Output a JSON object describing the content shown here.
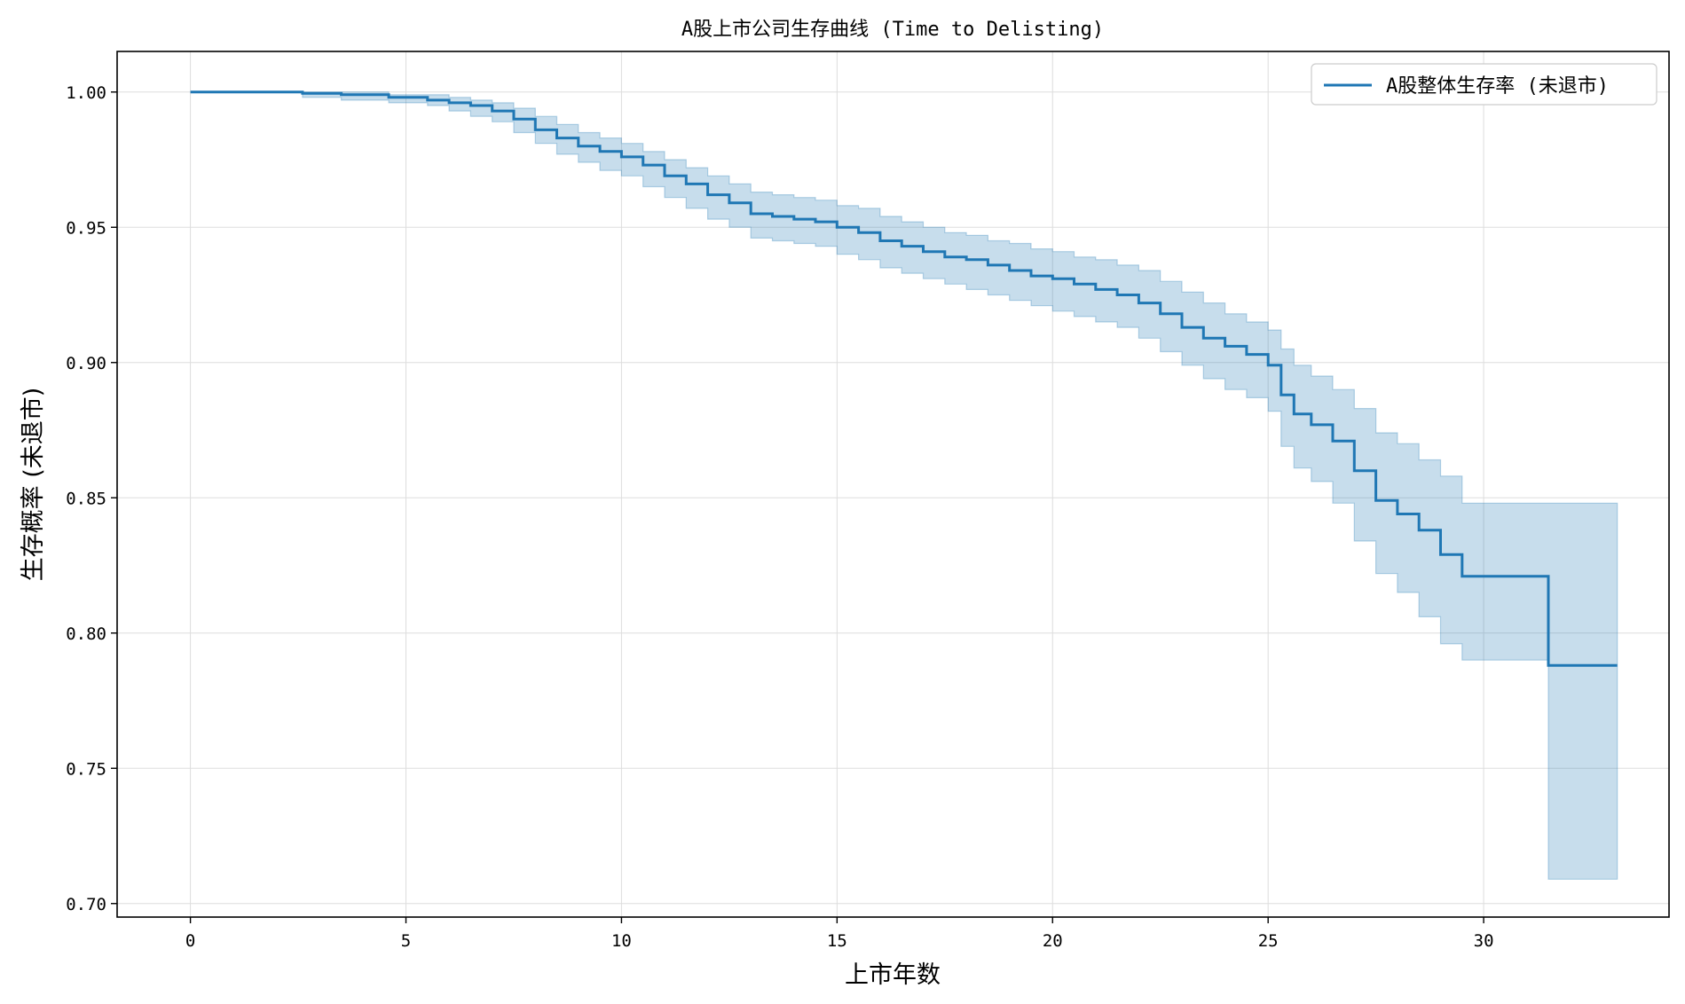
{
  "chart_data": {
    "type": "line",
    "title": "A股上市公司生存曲线 (Time to Delisting)",
    "xlabel": "上市年数",
    "ylabel": "生存概率 (未退市)",
    "xlim": [
      -1.7,
      34.3
    ],
    "ylim": [
      0.695,
      1.015
    ],
    "xticks": [
      0,
      5,
      10,
      15,
      20,
      25,
      30
    ],
    "yticks": [
      0.7,
      0.75,
      0.8,
      0.85,
      0.9,
      0.95,
      1.0
    ],
    "ytick_labels": [
      "0.70",
      "0.75",
      "0.80",
      "0.85",
      "0.90",
      "0.95",
      "1.00"
    ],
    "grid": true,
    "legend_position": "top-right",
    "colors": {
      "line": "#1f77b4",
      "band": "#1f77b4",
      "grid": "#dddddd"
    },
    "series": [
      {
        "name": "A股整体生存率 (未退市)",
        "step": true,
        "x": [
          0,
          2.6,
          3.5,
          4.6,
          5.5,
          6.0,
          6.5,
          7.0,
          7.5,
          8.0,
          8.5,
          9.0,
          9.5,
          10.0,
          10.5,
          11.0,
          11.5,
          12.0,
          12.5,
          13.0,
          13.5,
          14.0,
          14.5,
          15.0,
          15.5,
          16.0,
          16.5,
          17.0,
          17.5,
          18.0,
          18.5,
          19.0,
          19.5,
          20.0,
          20.5,
          21.0,
          21.5,
          22.0,
          22.5,
          23.0,
          23.5,
          24.0,
          24.5,
          25.0,
          25.3,
          25.6,
          26.0,
          26.5,
          27.0,
          27.5,
          28.0,
          28.5,
          29.0,
          29.5,
          31.5,
          33.1
        ],
        "y": [
          1.0,
          0.9995,
          0.999,
          0.998,
          0.997,
          0.996,
          0.995,
          0.993,
          0.99,
          0.986,
          0.983,
          0.98,
          0.978,
          0.976,
          0.973,
          0.969,
          0.966,
          0.962,
          0.959,
          0.955,
          0.954,
          0.953,
          0.952,
          0.95,
          0.948,
          0.945,
          0.943,
          0.941,
          0.939,
          0.938,
          0.936,
          0.934,
          0.932,
          0.931,
          0.929,
          0.927,
          0.925,
          0.922,
          0.918,
          0.913,
          0.909,
          0.906,
          0.903,
          0.899,
          0.888,
          0.881,
          0.877,
          0.871,
          0.86,
          0.849,
          0.844,
          0.838,
          0.829,
          0.821,
          0.788,
          0.788
        ],
        "ci_lower": [
          1.0,
          0.998,
          0.997,
          0.996,
          0.995,
          0.993,
          0.991,
          0.989,
          0.985,
          0.981,
          0.977,
          0.974,
          0.971,
          0.969,
          0.965,
          0.961,
          0.957,
          0.953,
          0.95,
          0.946,
          0.945,
          0.944,
          0.943,
          0.94,
          0.938,
          0.935,
          0.933,
          0.931,
          0.929,
          0.927,
          0.925,
          0.923,
          0.921,
          0.919,
          0.917,
          0.915,
          0.913,
          0.909,
          0.904,
          0.899,
          0.894,
          0.89,
          0.887,
          0.882,
          0.869,
          0.861,
          0.856,
          0.848,
          0.834,
          0.822,
          0.815,
          0.806,
          0.796,
          0.79,
          0.709,
          0.709
        ],
        "ci_upper": [
          1.0,
          1.0,
          1.0,
          0.999,
          0.999,
          0.998,
          0.997,
          0.996,
          0.994,
          0.991,
          0.988,
          0.985,
          0.983,
          0.981,
          0.978,
          0.975,
          0.972,
          0.969,
          0.966,
          0.963,
          0.962,
          0.961,
          0.96,
          0.958,
          0.957,
          0.954,
          0.952,
          0.95,
          0.948,
          0.947,
          0.945,
          0.944,
          0.942,
          0.941,
          0.939,
          0.938,
          0.936,
          0.934,
          0.93,
          0.926,
          0.922,
          0.918,
          0.915,
          0.912,
          0.905,
          0.899,
          0.895,
          0.89,
          0.883,
          0.874,
          0.87,
          0.864,
          0.858,
          0.848,
          0.848,
          0.848
        ]
      }
    ]
  }
}
